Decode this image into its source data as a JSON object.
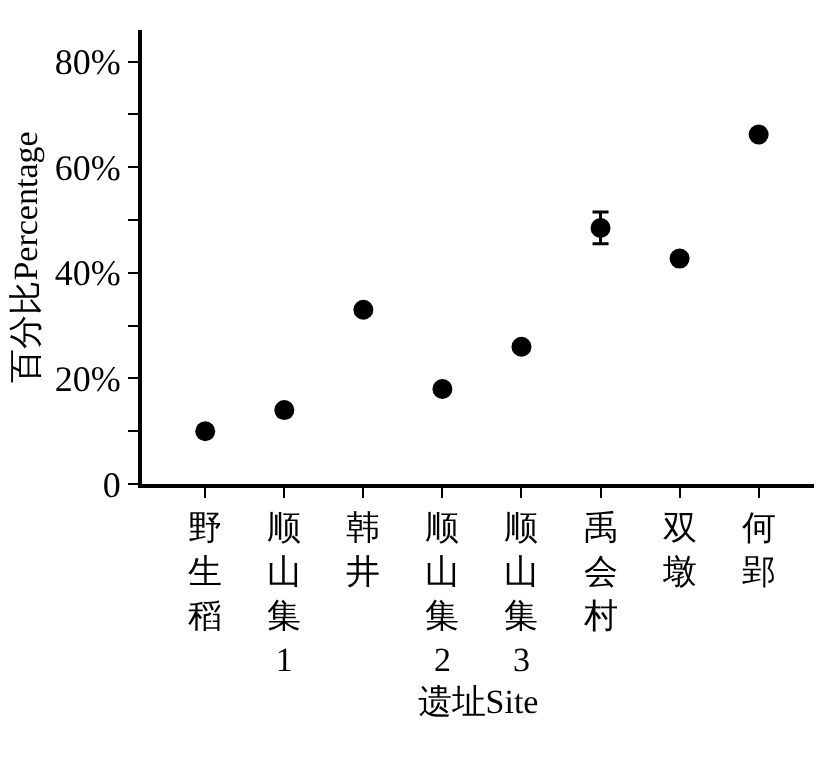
{
  "chart_data": {
    "type": "scatter",
    "xlabel": "遗址Site",
    "ylabel": "百分比Percentage",
    "categories": [
      "野生稻",
      "顺山集1",
      "韩井",
      "顺山集2",
      "顺山集3",
      "禹会村",
      "双墩",
      "何郢"
    ],
    "values": [
      10,
      14,
      33,
      18,
      26,
      48.5,
      42.7,
      66.2
    ],
    "errors": [
      null,
      null,
      null,
      null,
      null,
      3,
      null,
      null
    ],
    "color": "#000000",
    "marker": "circle",
    "grid": false,
    "ylim": [
      0,
      86
    ],
    "yticks": [
      {
        "value": 0,
        "label": "0"
      },
      {
        "value": 10,
        "label": null
      },
      {
        "value": 20,
        "label": "20%"
      },
      {
        "value": 30,
        "label": null
      },
      {
        "value": 40,
        "label": "40%"
      },
      {
        "value": 50,
        "label": null
      },
      {
        "value": 60,
        "label": "60%"
      },
      {
        "value": 70,
        "label": null
      },
      {
        "value": 80,
        "label": "80%"
      }
    ]
  }
}
